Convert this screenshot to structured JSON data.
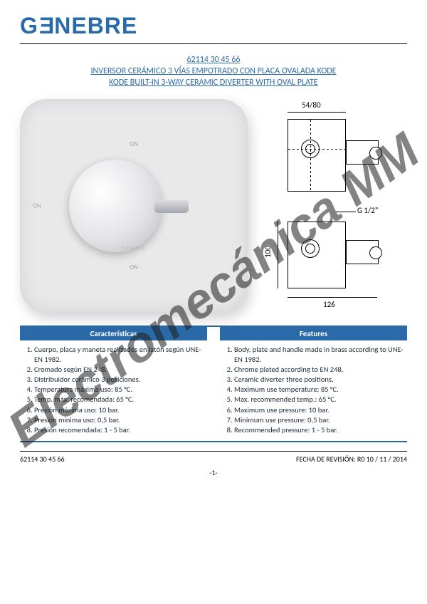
{
  "logo_text": "GENEBRE",
  "product_code": "62114 30 45 66",
  "title_es": "INVERSOR CERÁMICO 3 VÍAS EMPOTRADO CON PLACA OVALADA KODE",
  "title_en": "KODE BUILT-IN 3-WAY CERAMIC DIVERTER WITH OVAL PLATE",
  "diagram": {
    "dim_top": "54/80",
    "dim_thread": "G 1/2\"",
    "dim_height": "100",
    "dim_width": "126"
  },
  "photo_labels": {
    "on": "ON",
    "brand": "GENEBRE"
  },
  "tables": {
    "left_header": "Características",
    "right_header": "Features",
    "left_items": [
      "Cuerpo, placa y maneta realizados en latón según UNE-EN 1982.",
      "Cromado según EN 248.",
      "Distribuidor cerámico 3 posiciones.",
      "Temperatura máxima uso: 85 °C.",
      "Temp. máx. recomendada: 65 °C.",
      "Presión máxima uso: 10 bar.",
      "Presión mínima uso: 0,5 bar.",
      "Presión recomendada: 1 - 5 bar."
    ],
    "right_items": [
      "Body, plate and handle made in brass according to UNE-EN 1982.",
      "Chrome plated according to EN 248.",
      "Ceramic diverter three positions.",
      "Maximum use temperature: 85 °C.",
      "Max. recommended temp.: 65 °C.",
      "Maximum use pressure: 10 bar.",
      "Minimum use pressure: 0,5 bar.",
      "Recommended pressure: 1 - 5 bar."
    ]
  },
  "footer": {
    "left": "62114 30 45 66",
    "right": "FECHA DE REVISIÓN: R0 10 / 11 / 2014",
    "page": "-1-"
  },
  "watermark": "Electromecánica MM",
  "colors": {
    "brand_blue": "#2a6aa8",
    "text": "#1d2a38",
    "bg": "#ffffff"
  }
}
